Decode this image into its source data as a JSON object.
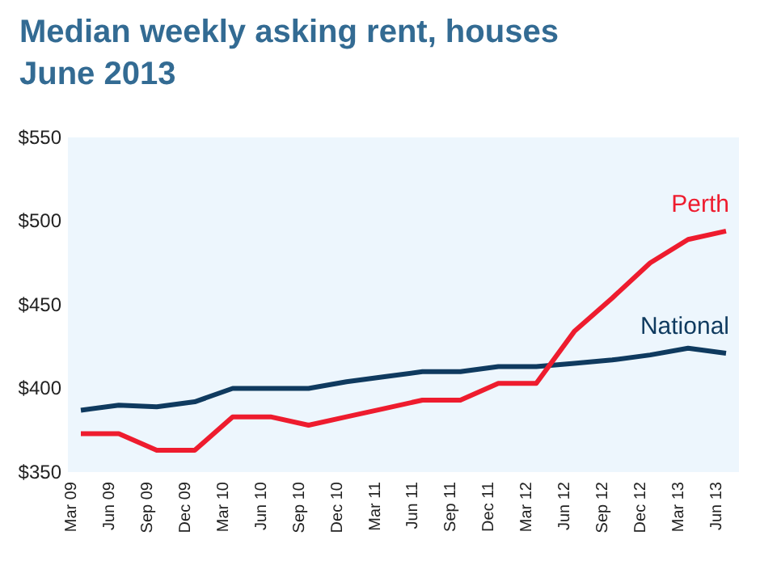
{
  "chart_data": {
    "type": "line",
    "title": "Median weekly asking rent, houses\nJune 2013",
    "categories": [
      "Mar 09",
      "Jun 09",
      "Sep 09",
      "Dec 09",
      "Mar 10",
      "Jun 10",
      "Sep 10",
      "Dec 10",
      "Mar 11",
      "Jun 11",
      "Sep 11",
      "Dec 11",
      "Mar 12",
      "Jun 12",
      "Sep 12",
      "Dec 12",
      "Mar 13",
      "Jun 13"
    ],
    "series": [
      {
        "name": "National",
        "color": "#0f3a5f",
        "values": [
          387,
          390,
          389,
          392,
          400,
          400,
          400,
          404,
          407,
          410,
          410,
          413,
          413,
          415,
          417,
          420,
          424,
          421
        ]
      },
      {
        "name": "Perth",
        "color": "#ee1c2e",
        "values": [
          373,
          373,
          363,
          363,
          383,
          383,
          378,
          383,
          388,
          393,
          393,
          403,
          403,
          434,
          454,
          475,
          489,
          494
        ]
      }
    ],
    "ylim": [
      350,
      550
    ],
    "yticks": [
      {
        "value": 350,
        "label": "$350"
      },
      {
        "value": 400,
        "label": "$400"
      },
      {
        "value": 450,
        "label": "$450"
      },
      {
        "value": 500,
        "label": "$500"
      },
      {
        "value": 550,
        "label": "$550"
      }
    ],
    "grid": false,
    "legend": false,
    "marker": "none",
    "line_style": "solid"
  }
}
